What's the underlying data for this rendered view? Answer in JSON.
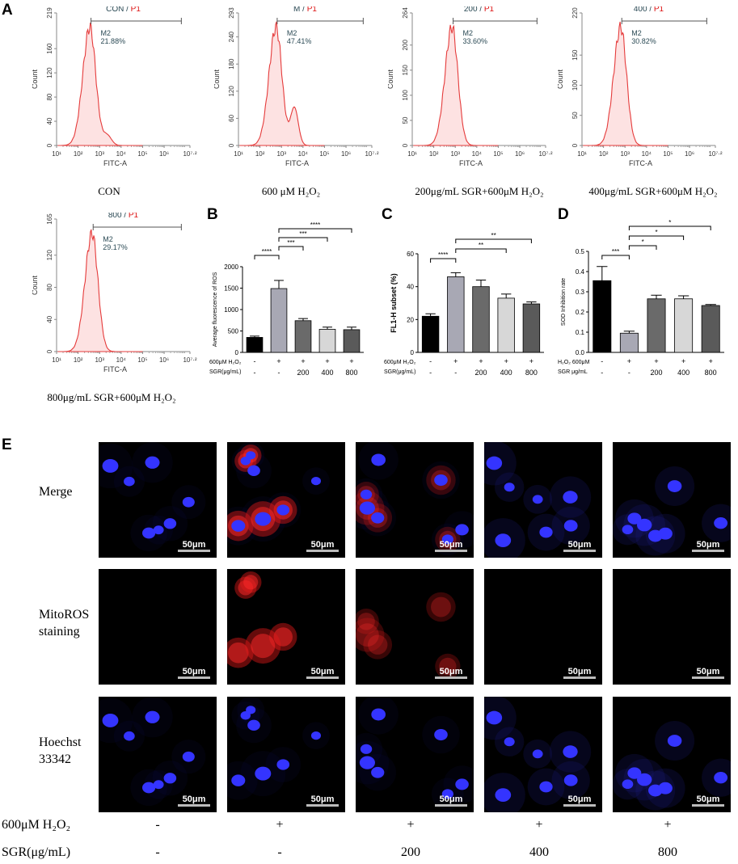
{
  "panels": {
    "A": "A",
    "B": "B",
    "C": "C",
    "D": "D",
    "E": "E"
  },
  "histograms": [
    {
      "title_black": "CON",
      "title_red": "P1",
      "gate": "M2",
      "percent": "21.88%",
      "ymax": 219,
      "yticks": [
        0,
        40,
        80,
        120,
        160,
        219
      ],
      "peak_log": 2.55,
      "caption": "CON",
      "shape": "con"
    },
    {
      "title_black": "M",
      "title_red": "P1",
      "gate": "M2",
      "percent": "47.41%",
      "ymax": 293,
      "yticks": [
        0,
        60,
        120,
        180,
        240,
        293
      ],
      "peak_log": 2.75,
      "caption": "600 μM H₂O₂",
      "shape": "m"
    },
    {
      "title_black": "200",
      "title_red": "P1",
      "gate": "M2",
      "percent": "33.60%",
      "ymax": 264,
      "yticks": [
        0,
        50,
        100,
        150,
        200,
        264
      ],
      "peak_log": 2.85,
      "caption": "200μg/mL SGR+600μM H₂O₂",
      "shape": "s200"
    },
    {
      "title_black": "400",
      "title_red": "P1",
      "gate": "M2",
      "percent": "30.82%",
      "ymax": 220,
      "yticks": [
        0,
        50,
        100,
        150,
        220
      ],
      "peak_log": 2.8,
      "caption": "400μg/mL SGR+600μM H₂O₂",
      "shape": "s400"
    },
    {
      "title_black": "800",
      "title_red": "P1",
      "gate": "M2",
      "percent": "29.17%",
      "ymax": 165,
      "yticks": [
        0,
        40,
        80,
        120,
        165
      ],
      "peak_log": 2.65,
      "caption": "800μg/mL SGR+600μM H₂O₂",
      "shape": "s800"
    }
  ],
  "hist_axis": {
    "xlabel": "FITC-A",
    "ylabel": "Count",
    "xticks": [
      "10¹",
      "10²",
      "10³",
      "10⁴",
      "10⁵",
      "10⁶",
      "10⁷·²"
    ]
  },
  "chart_data": [
    {
      "type": "bar",
      "panel": "B",
      "ylabel": "Average fluorescence of ROS",
      "ylim": [
        0,
        2000
      ],
      "yticks": [
        0,
        500,
        1000,
        1500,
        2000
      ],
      "values": [
        350,
        1490,
        740,
        540,
        530
      ],
      "errors": [
        30,
        190,
        50,
        50,
        60
      ],
      "colors": [
        "#000000",
        "#a8a8b4",
        "#6a6a6a",
        "#d7d7d7",
        "#5a5a5a"
      ],
      "row1_label": "600μM H₂O₂",
      "row1": [
        "-",
        "+",
        "+",
        "+",
        "+"
      ],
      "row2_label": "SGR(μg/mL)",
      "row2": [
        "-",
        "-",
        "200",
        "400",
        "800"
      ],
      "sig": [
        {
          "from": 0,
          "to": 1,
          "label": "****"
        },
        {
          "from": 1,
          "to": 2,
          "label": "***"
        },
        {
          "from": 1,
          "to": 3,
          "label": "***"
        },
        {
          "from": 1,
          "to": 4,
          "label": "****"
        }
      ]
    },
    {
      "type": "bar",
      "panel": "C",
      "ylabel": "FL1-H subset (%)",
      "ylim": [
        0,
        60
      ],
      "yticks": [
        0,
        20,
        40,
        60
      ],
      "values": [
        22,
        46,
        40,
        33,
        29.5
      ],
      "errors": [
        1.5,
        2.5,
        4,
        2.5,
        1.2
      ],
      "colors": [
        "#000000",
        "#a8a8b4",
        "#6a6a6a",
        "#d7d7d7",
        "#5a5a5a"
      ],
      "row1_label": "600μM H₂O₂",
      "row1": [
        "-",
        "+",
        "+",
        "+",
        "+"
      ],
      "row2_label": "SGR(μg/mL)",
      "row2": [
        "-",
        "-",
        "200",
        "400",
        "800"
      ],
      "sig": [
        {
          "from": 0,
          "to": 1,
          "label": "****"
        },
        {
          "from": 1,
          "to": 3,
          "label": "**"
        },
        {
          "from": 1,
          "to": 4,
          "label": "**"
        }
      ]
    },
    {
      "type": "bar",
      "panel": "D",
      "ylabel": "SOD Inhibition rate",
      "ylim": [
        0,
        0.5
      ],
      "yticks": [
        0.0,
        0.1,
        0.2,
        0.3,
        0.4,
        0.5
      ],
      "values": [
        0.355,
        0.095,
        0.265,
        0.265,
        0.232
      ],
      "errors": [
        0.07,
        0.01,
        0.018,
        0.015,
        0.005
      ],
      "colors": [
        "#000000",
        "#a8a8b4",
        "#6a6a6a",
        "#d7d7d7",
        "#5a5a5a"
      ],
      "row1_label": "H₂O₂ 600μM",
      "row1": [
        "-",
        "+",
        "+",
        "+",
        "+"
      ],
      "row2_label": "SGR μg/mL",
      "row2": [
        "-",
        "-",
        "200",
        "400",
        "800"
      ],
      "sig": [
        {
          "from": 0,
          "to": 1,
          "label": "***"
        },
        {
          "from": 1,
          "to": 2,
          "label": "*"
        },
        {
          "from": 1,
          "to": 3,
          "label": "*"
        },
        {
          "from": 1,
          "to": 4,
          "label": "*"
        }
      ]
    }
  ],
  "microscopy": {
    "scale_bar": "50μm",
    "row_labels": [
      [
        "Merge"
      ],
      [
        "MitoROS",
        "staining"
      ],
      [
        "Hoechst",
        "33342"
      ]
    ],
    "red_intensity": [
      0,
      1,
      0.55,
      0,
      0
    ],
    "bottom": {
      "row1_label": "600μM H₂O₂",
      "row1": [
        "-",
        "+",
        "+",
        "+",
        "+"
      ],
      "row2_label": "SGR(μg/mL)",
      "row2": [
        "-",
        "-",
        "200",
        "400",
        "800"
      ]
    }
  }
}
